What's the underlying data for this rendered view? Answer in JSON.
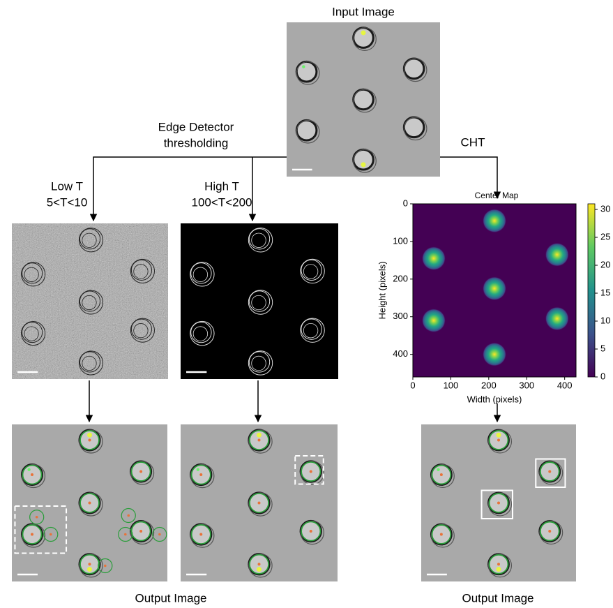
{
  "input": {
    "title": "Input Image"
  },
  "edge_detector": {
    "line1": "Edge Detector",
    "line2": "thresholding"
  },
  "branches": [
    {
      "label": "Low T",
      "range": "5<T<10"
    },
    {
      "label": "High T",
      "range": "100<T<200"
    },
    {
      "label": "CHT"
    }
  ],
  "center_map": {
    "title": "Center Map",
    "x_label": "Width (pixels)",
    "y_label": "Height (pixels)",
    "xlim": [
      0,
      430
    ],
    "ylim": [
      0,
      460
    ],
    "xticks": [
      0,
      100,
      200,
      300,
      400
    ],
    "yticks": [
      0,
      100,
      200,
      300,
      400
    ],
    "colorbar": {
      "lim": [
        0,
        31
      ],
      "ticks": [
        0,
        5,
        10,
        15,
        20,
        25,
        30
      ]
    },
    "peaks": {
      "x": [
        215,
        55,
        380,
        215,
        55,
        380,
        215
      ],
      "y": [
        45,
        145,
        135,
        225,
        310,
        305,
        400
      ]
    }
  },
  "outputs": [
    "Output Image",
    "Output Image"
  ]
}
